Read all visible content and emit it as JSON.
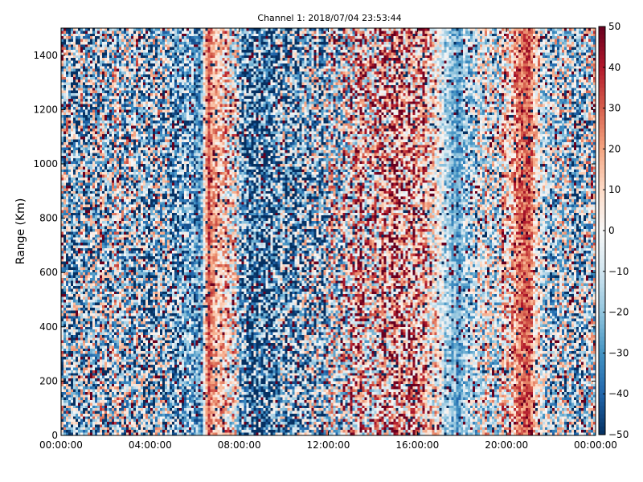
{
  "chart_data": {
    "type": "heatmap",
    "title": "Channel 1: 2018/07/04 23:53:44",
    "ylabel": "Range (Km)",
    "xlabel": "",
    "x_ticks": [
      "00:00:00",
      "04:00:00",
      "08:00:00",
      "12:00:00",
      "16:00:00",
      "20:00:00",
      "00:00:00"
    ],
    "x_range_hours": [
      0,
      24
    ],
    "y_ticks": [
      0,
      200,
      400,
      600,
      800,
      1000,
      1200,
      1400
    ],
    "ylim": [
      0,
      1500
    ],
    "colorbar": {
      "ticks": [
        50,
        40,
        30,
        20,
        10,
        0,
        -10,
        -20,
        -30,
        -40,
        -50
      ],
      "range": [
        -50,
        50
      ],
      "colormap": "RdBu_r",
      "low_color": "#053061",
      "mid_color": "#f7f7f7",
      "high_color": "#67001f"
    },
    "grid": false,
    "column_profile_hours": [
      0,
      1.5,
      3,
      4.5,
      6.3,
      6.6,
      6.9,
      7.5,
      8.5,
      10,
      12,
      13,
      14,
      15,
      16,
      16.8,
      17.3,
      17.8,
      18.4,
      19,
      19.6,
      20.1,
      20.6,
      21,
      21.3,
      21.7,
      22.2,
      23,
      24
    ],
    "column_profile_values": [
      -8,
      -14,
      -10,
      -18,
      -30,
      35,
      20,
      12,
      -35,
      -28,
      -10,
      5,
      15,
      20,
      18,
      5,
      -15,
      -25,
      -15,
      0,
      -3,
      10,
      25,
      35,
      10,
      -8,
      -10,
      -15,
      -12
    ],
    "column_profile_noise": [
      45,
      42,
      42,
      42,
      20,
      10,
      15,
      30,
      38,
      40,
      42,
      42,
      40,
      38,
      35,
      25,
      15,
      12,
      25,
      30,
      35,
      30,
      15,
      12,
      20,
      30,
      35,
      40,
      40
    ]
  }
}
